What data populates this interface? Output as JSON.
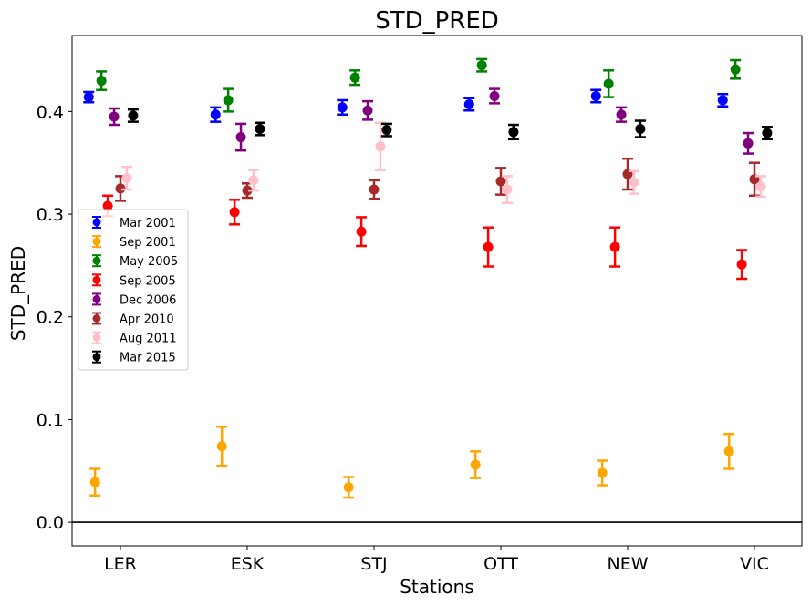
{
  "chart_data": {
    "type": "scatter",
    "title": "STD_PRED",
    "xlabel": "Stations",
    "ylabel": "STD_PRED",
    "categories": [
      "LER",
      "ESK",
      "STJ",
      "OTT",
      "NEW",
      "VIC"
    ],
    "ylim": [
      -0.023,
      0.474
    ],
    "yticks": [
      "0.0",
      "0.1",
      "0.2",
      "0.3",
      "0.4"
    ],
    "grid": false,
    "legend_position": "center-left",
    "reference_line_y": 0,
    "series": [
      {
        "name": "Mar 2001",
        "color": "#0000ff",
        "offset": -0.25,
        "values": [
          0.414,
          0.397,
          0.404,
          0.407,
          0.415,
          0.411
        ],
        "errors": [
          0.005,
          0.007,
          0.007,
          0.006,
          0.006,
          0.006
        ]
      },
      {
        "name": "Sep 2001",
        "color": "#ffa500",
        "offset": -0.2,
        "values": [
          0.039,
          0.074,
          0.034,
          0.056,
          0.048,
          0.069
        ],
        "errors": [
          0.013,
          0.019,
          0.01,
          0.013,
          0.012,
          0.017
        ]
      },
      {
        "name": "May 2005",
        "color": "#008000",
        "offset": -0.15,
        "values": [
          0.43,
          0.411,
          0.433,
          0.445,
          0.427,
          0.441
        ],
        "errors": [
          0.009,
          0.011,
          0.007,
          0.006,
          0.013,
          0.009
        ]
      },
      {
        "name": "Sep 2005",
        "color": "#ff0000",
        "offset": -0.1,
        "values": [
          0.308,
          0.302,
          0.283,
          0.268,
          0.268,
          0.251
        ],
        "errors": [
          0.01,
          0.012,
          0.014,
          0.019,
          0.019,
          0.014
        ]
      },
      {
        "name": "Dec 2006",
        "color": "#800080",
        "offset": -0.05,
        "values": [
          0.395,
          0.375,
          0.401,
          0.415,
          0.397,
          0.369
        ],
        "errors": [
          0.008,
          0.013,
          0.009,
          0.007,
          0.007,
          0.01
        ]
      },
      {
        "name": "Apr 2010",
        "color": "#a52a2a",
        "offset": 0.0,
        "values": [
          0.325,
          0.323,
          0.324,
          0.332,
          0.339,
          0.334
        ],
        "errors": [
          0.012,
          0.007,
          0.009,
          0.013,
          0.015,
          0.016
        ]
      },
      {
        "name": "Aug 2011",
        "color": "#ffc0cb",
        "offset": 0.05,
        "values": [
          0.335,
          0.333,
          0.366,
          0.324,
          0.331,
          0.327
        ],
        "errors": [
          0.011,
          0.01,
          0.023,
          0.013,
          0.011,
          0.01
        ]
      },
      {
        "name": "Mar 2015",
        "color": "#000000",
        "offset": 0.1,
        "values": [
          0.396,
          0.383,
          0.382,
          0.38,
          0.383,
          0.379
        ],
        "errors": [
          0.006,
          0.006,
          0.006,
          0.007,
          0.008,
          0.006
        ]
      }
    ]
  }
}
